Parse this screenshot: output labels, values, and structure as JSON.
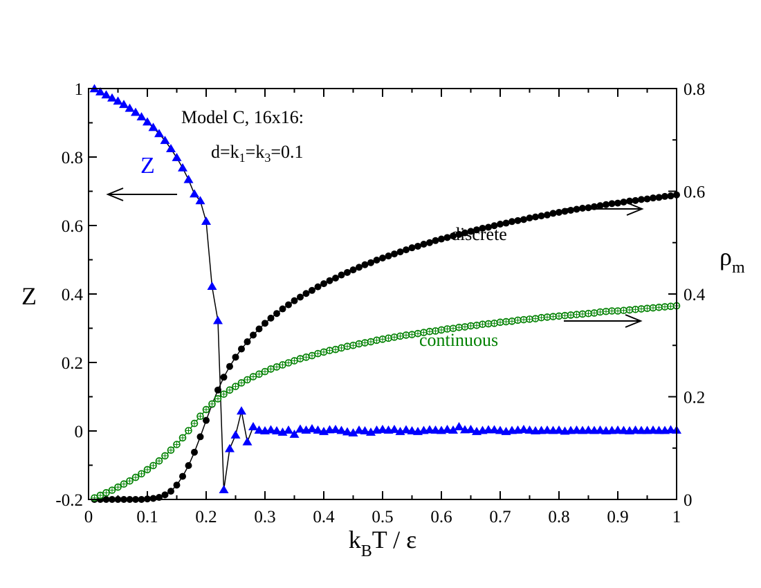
{
  "chart_data": {
    "type": "line",
    "title": "",
    "xlabel": {
      "k": "k",
      "sub": "B",
      "rest": "T / ε"
    },
    "ylabel_left": "Z",
    "ylabel_right": {
      "main": "ρ",
      "sub": "m"
    },
    "xlim": [
      0,
      1
    ],
    "ylim_left": [
      -0.2,
      1
    ],
    "ylim_right": [
      0,
      0.8
    ],
    "x_ticks": [
      "0",
      "0.1",
      "0.2",
      "0.3",
      "0.4",
      "0.5",
      "0.6",
      "0.7",
      "0.8",
      "0.9",
      "1"
    ],
    "y_left_ticks": [
      "-0.2",
      "0",
      "0.2",
      "0.4",
      "0.6",
      "0.8",
      "1"
    ],
    "y_right_ticks": [
      "0",
      "0.2",
      "0.4",
      "0.6",
      "0.8"
    ],
    "annotations": {
      "model_line1": "Model C, 16x16:",
      "model_line2": {
        "a": "d=k",
        "s1": "1",
        "b": "=k",
        "s2": "3",
        "c": "=0.1"
      },
      "z_label": "Z",
      "discrete_label": "discrete",
      "continuous_label": "continuous"
    },
    "colors": {
      "Z": "#0000ff",
      "discrete": "#000000",
      "continuous": "#008000"
    },
    "series": [
      {
        "name": "Z",
        "axis": "left",
        "marker": "triangle",
        "x": [
          0.01,
          0.02,
          0.03,
          0.04,
          0.05,
          0.06,
          0.07,
          0.08,
          0.09,
          0.1,
          0.11,
          0.12,
          0.13,
          0.14,
          0.15,
          0.16,
          0.17,
          0.18,
          0.19,
          0.2,
          0.21,
          0.22,
          0.23,
          0.24,
          0.25,
          0.26,
          0.27,
          0.28,
          0.29,
          0.3,
          0.31,
          0.32,
          0.33,
          0.34,
          0.35,
          0.36,
          0.37,
          0.38,
          0.39,
          0.4,
          0.41,
          0.42,
          0.43,
          0.44,
          0.45,
          0.46,
          0.47,
          0.48,
          0.49,
          0.5,
          0.51,
          0.52,
          0.53,
          0.54,
          0.55,
          0.56,
          0.57,
          0.58,
          0.59,
          0.6,
          0.61,
          0.62,
          0.63,
          0.64,
          0.65,
          0.66,
          0.67,
          0.68,
          0.69,
          0.7,
          0.71,
          0.72,
          0.73,
          0.74,
          0.75,
          0.76,
          0.77,
          0.78,
          0.79,
          0.8,
          0.81,
          0.82,
          0.83,
          0.84,
          0.85,
          0.86,
          0.87,
          0.88,
          0.89,
          0.9,
          0.91,
          0.92,
          0.93,
          0.94,
          0.95,
          0.96,
          0.97,
          0.98,
          0.99,
          1.0
        ],
        "values": [
          0.999,
          0.99,
          0.981,
          0.972,
          0.963,
          0.953,
          0.942,
          0.93,
          0.917,
          0.902,
          0.886,
          0.868,
          0.848,
          0.824,
          0.798,
          0.768,
          0.734,
          0.692,
          0.672,
          0.612,
          0.422,
          0.322,
          -0.172,
          -0.052,
          -0.012,
          0.058,
          -0.032,
          0.012,
          0.002,
          0.0,
          0.003,
          0.0,
          -0.004,
          0.002,
          -0.01,
          0.005,
          0.002,
          0.006,
          0.002,
          -0.002,
          0.003,
          0.004,
          0.001,
          -0.003,
          -0.006,
          0.002,
          0.0,
          -0.004,
          0.002,
          0.004,
          0.002,
          0.004,
          -0.002,
          0.003,
          0.0,
          -0.002,
          0.001,
          0.003,
          0.002,
          0.001,
          0.004,
          0.002,
          0.012,
          0.003,
          0.004,
          -0.002,
          0.001,
          0.003,
          0.003,
          0.001,
          -0.002,
          0.001,
          0.002,
          0.004,
          0.002,
          0.0,
          0.001,
          0.002,
          0.001,
          0.002,
          -0.001,
          0.001,
          0.002,
          0.001,
          0.002,
          0.001,
          0.002,
          0.0,
          0.001,
          0.002,
          0.001,
          0.0,
          0.002,
          0.001,
          0.001,
          0.002,
          0.001,
          0.001,
          0.003,
          0.002
        ]
      },
      {
        "name": "discrete",
        "axis": "right",
        "marker": "circle",
        "x": [
          0.01,
          0.02,
          0.03,
          0.04,
          0.05,
          0.06,
          0.07,
          0.08,
          0.09,
          0.1,
          0.11,
          0.12,
          0.13,
          0.14,
          0.15,
          0.16,
          0.17,
          0.18,
          0.19,
          0.2,
          0.21,
          0.22,
          0.23,
          0.24,
          0.25,
          0.26,
          0.27,
          0.28,
          0.29,
          0.3,
          0.31,
          0.32,
          0.33,
          0.34,
          0.35,
          0.36,
          0.37,
          0.38,
          0.39,
          0.4,
          0.41,
          0.42,
          0.43,
          0.44,
          0.45,
          0.46,
          0.47,
          0.48,
          0.49,
          0.5,
          0.51,
          0.52,
          0.53,
          0.54,
          0.55,
          0.56,
          0.57,
          0.58,
          0.59,
          0.6,
          0.61,
          0.62,
          0.63,
          0.64,
          0.65,
          0.66,
          0.67,
          0.68,
          0.69,
          0.7,
          0.71,
          0.72,
          0.73,
          0.74,
          0.75,
          0.76,
          0.77,
          0.78,
          0.79,
          0.8,
          0.81,
          0.82,
          0.83,
          0.84,
          0.85,
          0.86,
          0.87,
          0.88,
          0.89,
          0.9,
          0.91,
          0.92,
          0.93,
          0.94,
          0.95,
          0.96,
          0.97,
          0.98,
          0.99,
          1.0
        ],
        "values": [
          0.0,
          0.0,
          0.0,
          0.0,
          0.0,
          0.0,
          0.0,
          0.0,
          0.0,
          0.001,
          0.002,
          0.004,
          0.009,
          0.016,
          0.028,
          0.045,
          0.066,
          0.092,
          0.122,
          0.154,
          0.185,
          0.213,
          0.238,
          0.259,
          0.277,
          0.293,
          0.307,
          0.32,
          0.332,
          0.343,
          0.353,
          0.362,
          0.371,
          0.379,
          0.387,
          0.394,
          0.401,
          0.407,
          0.414,
          0.42,
          0.426,
          0.431,
          0.437,
          0.442,
          0.447,
          0.452,
          0.457,
          0.461,
          0.466,
          0.47,
          0.474,
          0.478,
          0.482,
          0.486,
          0.49,
          0.493,
          0.497,
          0.5,
          0.504,
          0.507,
          0.51,
          0.513,
          0.516,
          0.519,
          0.522,
          0.525,
          0.528,
          0.53,
          0.533,
          0.536,
          0.538,
          0.541,
          0.543,
          0.545,
          0.548,
          0.55,
          0.552,
          0.554,
          0.557,
          0.559,
          0.561,
          0.563,
          0.565,
          0.567,
          0.568,
          0.57,
          0.572,
          0.574,
          0.576,
          0.577,
          0.579,
          0.581,
          0.582,
          0.584,
          0.585,
          0.587,
          0.588,
          0.59,
          0.591,
          0.593
        ]
      },
      {
        "name": "continuous",
        "axis": "right",
        "marker": "circle-open",
        "x": [
          0.01,
          0.02,
          0.03,
          0.04,
          0.05,
          0.06,
          0.07,
          0.08,
          0.09,
          0.1,
          0.11,
          0.12,
          0.13,
          0.14,
          0.15,
          0.16,
          0.17,
          0.18,
          0.19,
          0.2,
          0.21,
          0.22,
          0.23,
          0.24,
          0.25,
          0.26,
          0.27,
          0.28,
          0.29,
          0.3,
          0.31,
          0.32,
          0.33,
          0.34,
          0.35,
          0.36,
          0.37,
          0.38,
          0.39,
          0.4,
          0.41,
          0.42,
          0.43,
          0.44,
          0.45,
          0.46,
          0.47,
          0.48,
          0.49,
          0.5,
          0.51,
          0.52,
          0.53,
          0.54,
          0.55,
          0.56,
          0.57,
          0.58,
          0.59,
          0.6,
          0.61,
          0.62,
          0.63,
          0.64,
          0.65,
          0.66,
          0.67,
          0.68,
          0.69,
          0.7,
          0.71,
          0.72,
          0.73,
          0.74,
          0.75,
          0.76,
          0.77,
          0.78,
          0.79,
          0.8,
          0.81,
          0.82,
          0.83,
          0.84,
          0.85,
          0.86,
          0.87,
          0.88,
          0.89,
          0.9,
          0.91,
          0.92,
          0.93,
          0.94,
          0.95,
          0.96,
          0.97,
          0.98,
          0.99,
          1.0
        ],
        "values": [
          0.003,
          0.008,
          0.013,
          0.018,
          0.024,
          0.03,
          0.036,
          0.043,
          0.05,
          0.058,
          0.066,
          0.075,
          0.085,
          0.096,
          0.107,
          0.12,
          0.134,
          0.148,
          0.162,
          0.175,
          0.186,
          0.196,
          0.205,
          0.213,
          0.22,
          0.227,
          0.233,
          0.239,
          0.244,
          0.249,
          0.254,
          0.258,
          0.262,
          0.266,
          0.27,
          0.274,
          0.277,
          0.28,
          0.284,
          0.287,
          0.29,
          0.292,
          0.295,
          0.298,
          0.3,
          0.303,
          0.305,
          0.307,
          0.31,
          0.312,
          0.314,
          0.316,
          0.318,
          0.32,
          0.321,
          0.323,
          0.325,
          0.327,
          0.328,
          0.33,
          0.332,
          0.333,
          0.335,
          0.336,
          0.338,
          0.339,
          0.341,
          0.342,
          0.343,
          0.345,
          0.346,
          0.347,
          0.349,
          0.35,
          0.351,
          0.352,
          0.354,
          0.355,
          0.356,
          0.357,
          0.358,
          0.359,
          0.36,
          0.361,
          0.362,
          0.363,
          0.365,
          0.366,
          0.367,
          0.367,
          0.368,
          0.369,
          0.37,
          0.371,
          0.372,
          0.373,
          0.374,
          0.375,
          0.376,
          0.377
        ]
      }
    ]
  }
}
